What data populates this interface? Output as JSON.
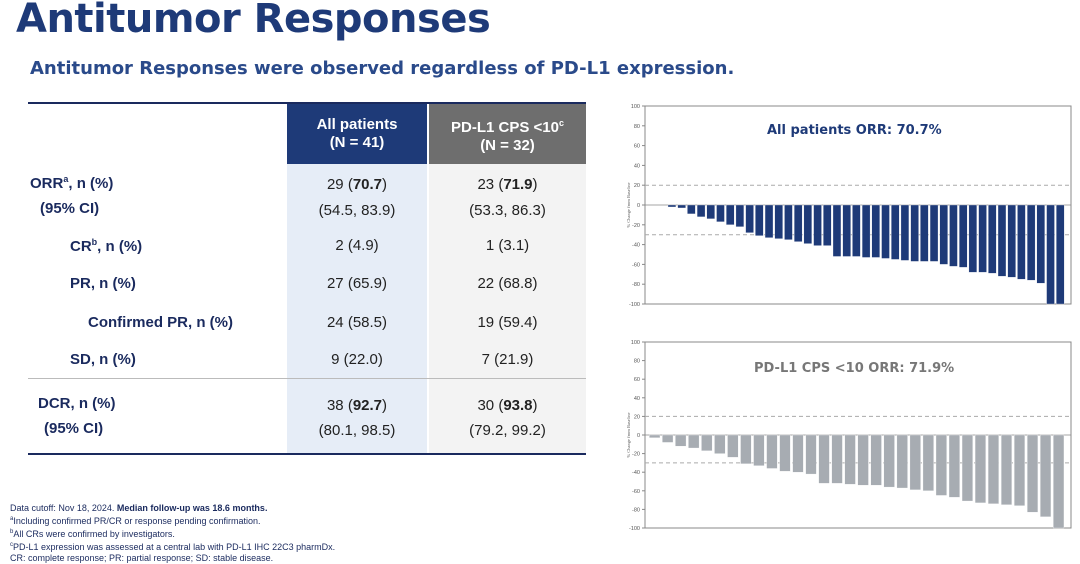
{
  "slide": {
    "title": "Antitumor Responses",
    "subtitle": "Antitumor Responses were observed regardless of PD-L1 expression."
  },
  "table": {
    "col1": {
      "line1": "All patients",
      "line2": "(N = 41)"
    },
    "col2": {
      "line1": "PD-L1 CPS <10",
      "sup": "c",
      "line2": "(N = 32)"
    },
    "rows": {
      "orr": {
        "label": "ORR",
        "sup": "a",
        "label_rest": ", n (%)",
        "ci_label": "(95% CI)",
        "v1_n": "29",
        "v1_pct": "70.7",
        "v1_ci": "(54.5, 83.9)",
        "v2_n": "23",
        "v2_pct": "71.9",
        "v2_ci": "(53.3, 86.3)"
      },
      "cr": {
        "label": "CR",
        "sup": "b",
        "label_rest": ", n (%)",
        "v1": "2 (4.9)",
        "v2": "1 (3.1)"
      },
      "pr": {
        "label": "PR, n (%)",
        "v1": "27 (65.9)",
        "v2": "22 (68.8)"
      },
      "cpr": {
        "label": "Confirmed PR, n (%)",
        "v1": "24 (58.5)",
        "v2": "19 (59.4)"
      },
      "sd": {
        "label": "SD, n (%)",
        "v1": "9 (22.0)",
        "v2": "7 (21.9)"
      },
      "dcr": {
        "label": "DCR, n (%)",
        "ci_label": "(95% CI)",
        "v1_n": "38",
        "v1_pct": "92.7",
        "v1_ci": "(80.1, 98.5)",
        "v2_n": "30",
        "v2_pct": "93.8",
        "v2_ci": "(79.2, 99.2)"
      }
    }
  },
  "footnotes": {
    "cutoff": "Data cutoff: Nov 18, 2024.",
    "followup": "Median follow-up was 18.6 months.",
    "a_mark": "a",
    "a": "Including confirmed PR/CR or response pending confirmation.",
    "b_mark": "b",
    "b": "All CRs were confirmed by investigators.",
    "c_mark": "c",
    "c": "PD-L1 expression was assessed at a central lab with PD-L1 IHC 22C3 pharmDx.",
    "abbr": "CR: complete response; PR: partial response; SD: stable disease."
  },
  "chart_data": [
    {
      "type": "bar",
      "title": "All patients ORR: 70.7%",
      "ylabel": "% Change from Baseline",
      "ylim": [
        -100,
        100
      ],
      "yticks": [
        "100",
        "80",
        "60",
        "40",
        "20",
        "0",
        "-20",
        "-40",
        "-60",
        "-80",
        "-100"
      ],
      "reference_lines": [
        20,
        -30
      ],
      "color": "#1e3a78",
      "values": [
        -2,
        -3,
        -9,
        -12,
        -14,
        -17,
        -20,
        -22,
        -28,
        -31,
        -33,
        -34,
        -35,
        -37,
        -39,
        -41,
        -41,
        -52,
        -52,
        -52,
        -53,
        -53,
        -54,
        -55,
        -56,
        -57,
        -57,
        -57,
        -60,
        -62,
        -63,
        -68,
        -68,
        -69,
        -72,
        -73,
        -75,
        -76,
        -79,
        -100,
        -100
      ]
    },
    {
      "type": "bar",
      "title": "PD-L1 CPS <10 ORR: 71.9%",
      "ylabel": "% Change from Baseline",
      "ylim": [
        -100,
        100
      ],
      "yticks": [
        "100",
        "80",
        "60",
        "40",
        "20",
        "0",
        "-20",
        "-40",
        "-60",
        "-80",
        "-100"
      ],
      "reference_lines": [
        20,
        -30
      ],
      "color": "#a7acb2",
      "values": [
        -3,
        -8,
        -12,
        -14,
        -17,
        -20,
        -24,
        -31,
        -33,
        -36,
        -39,
        -40,
        -42,
        -52,
        -52,
        -53,
        -54,
        -54,
        -56,
        -57,
        -59,
        -60,
        -65,
        -67,
        -71,
        -73,
        -74,
        -75,
        -76,
        -83,
        -88,
        -100
      ]
    }
  ]
}
